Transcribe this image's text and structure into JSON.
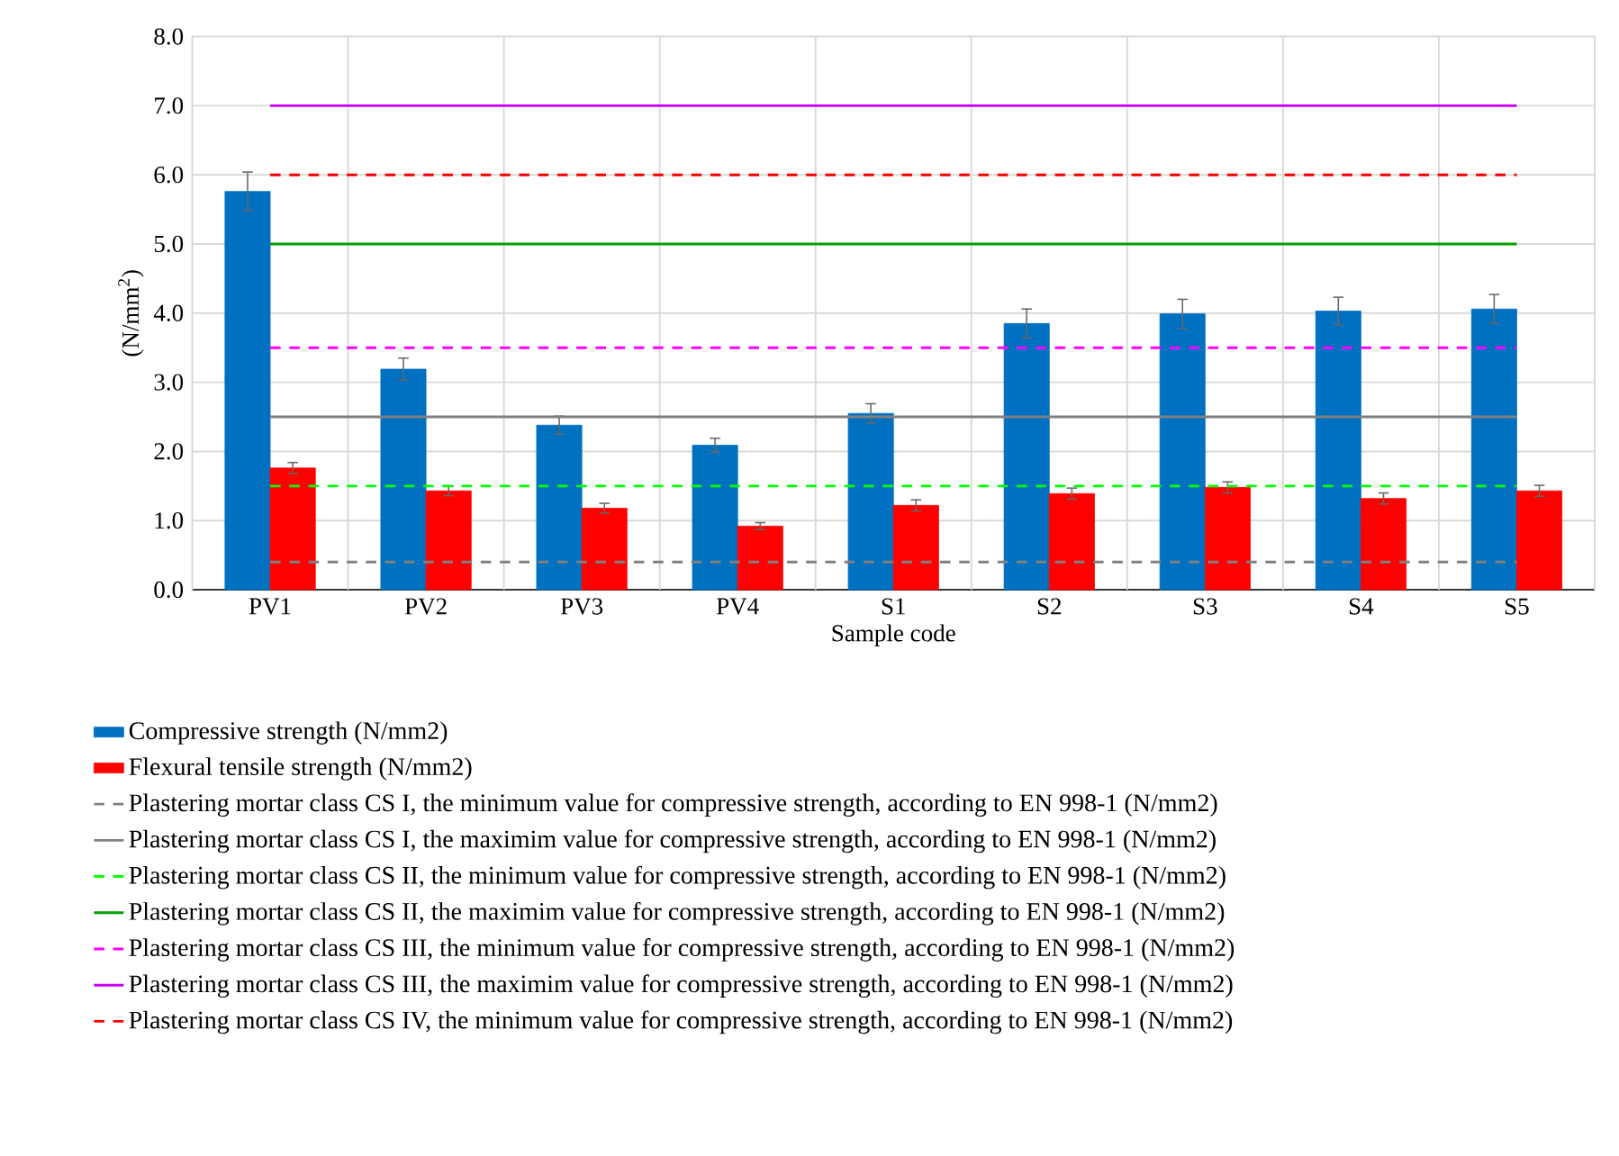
{
  "chart_data": {
    "type": "bar",
    "xlabel": "Sample code",
    "ylabel": "(N/mm$^{2}$)",
    "categories": [
      "PV1",
      "PV2",
      "PV3",
      "PV4",
      "S1",
      "S2",
      "S3",
      "S4",
      "S5"
    ],
    "ylim": [
      0,
      8
    ],
    "yticks": [
      {
        "value": 0,
        "label": "0.0"
      },
      {
        "value": 1,
        "label": "1.0"
      },
      {
        "value": 2,
        "label": "2.0"
      },
      {
        "value": 3,
        "label": "3.0"
      },
      {
        "value": 4,
        "label": "4.0"
      },
      {
        "value": 5,
        "label": "5.0"
      },
      {
        "value": 6,
        "label": "6.0"
      },
      {
        "value": 7,
        "label": "7.0"
      },
      {
        "value": 8,
        "label": "8.0"
      }
    ],
    "grid": true,
    "legend": "bottom",
    "marker": "none",
    "series": [
      {
        "name": "Compressive strength (N/mm2)",
        "color": "#0070c0",
        "values": [
          5.76,
          3.19,
          2.38,
          2.09,
          2.55,
          3.85,
          3.99,
          4.03,
          4.06
        ],
        "errors": [
          0.28,
          0.16,
          0.13,
          0.1,
          0.14,
          0.21,
          0.21,
          0.2,
          0.21
        ]
      },
      {
        "name": "Flexural tensile strength (N/mm2)",
        "color": "#ff0000",
        "values": [
          1.76,
          1.43,
          1.18,
          0.92,
          1.22,
          1.39,
          1.48,
          1.32,
          1.43
        ],
        "errors": [
          0.08,
          0.07,
          0.07,
          0.05,
          0.08,
          0.08,
          0.08,
          0.08,
          0.08
        ]
      },
      {
        "name": "Plastering mortar class CS I, the minimum value for compressive strength, according to EN 998-1 (N/mm2)",
        "type": "line",
        "line_style": "dashed",
        "color": "#808080",
        "values": [
          0.4,
          0.4,
          0.4,
          0.4,
          0.4,
          0.4,
          0.4,
          0.4,
          0.4
        ]
      },
      {
        "name": "Plastering mortar class CS I, the maximim value for compressive strength, according to EN 998-1 (N/mm2)",
        "type": "line",
        "line_style": "solid",
        "color": "#808080",
        "values": [
          2.5,
          2.5,
          2.5,
          2.5,
          2.5,
          2.5,
          2.5,
          2.5,
          2.5
        ]
      },
      {
        "name": "Plastering mortar class CS II, the minimum value for compressive strength, according to EN 998-1 (N/mm2)",
        "type": "line",
        "line_style": "dashed",
        "color": "#00ff00",
        "values": [
          1.5,
          1.5,
          1.5,
          1.5,
          1.5,
          1.5,
          1.5,
          1.5,
          1.5
        ]
      },
      {
        "name": "Plastering mortar class CS II, the maximim value for compressive strength, according to EN 998-1 (N/mm2)",
        "type": "line",
        "line_style": "solid",
        "color": "#00a000",
        "values": [
          5.0,
          5.0,
          5.0,
          5.0,
          5.0,
          5.0,
          5.0,
          5.0,
          5.0
        ]
      },
      {
        "name": "Plastering mortar class CS III, the minimum value for compressive strength, according to EN 998-1 (N/mm2)",
        "type": "line",
        "line_style": "dashed",
        "color": "#ff00ff",
        "values": [
          3.5,
          3.5,
          3.5,
          3.5,
          3.5,
          3.5,
          3.5,
          3.5,
          3.5
        ]
      },
      {
        "name": "Plastering mortar class CS III, the maximim value for compressive strength, according to EN 998-1 (N/mm2)",
        "type": "line",
        "line_style": "solid",
        "color": "#cc00ff",
        "values": [
          7.0,
          7.0,
          7.0,
          7.0,
          7.0,
          7.0,
          7.0,
          7.0,
          7.0
        ]
      },
      {
        "name": "Plastering mortar class CS IV, the minimum value for compressive strength, according to EN 998-1 (N/mm2)",
        "type": "line",
        "line_style": "dashed",
        "color": "#ff0000",
        "values": [
          6.0,
          6.0,
          6.0,
          6.0,
          6.0,
          6.0,
          6.0,
          6.0,
          6.0
        ]
      }
    ]
  }
}
